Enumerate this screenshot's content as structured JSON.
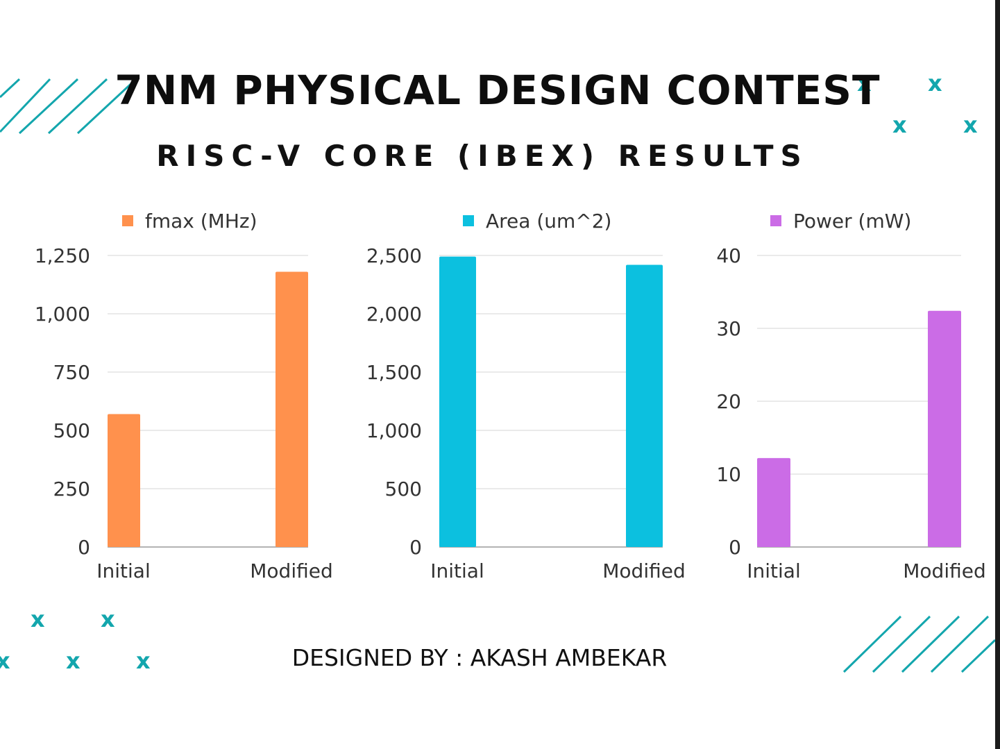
{
  "header": {
    "title": "7NM PHYSICAL DESIGN CONTEST",
    "subtitle": "RISC-V CORE (IBEX) RESULTS"
  },
  "footer": {
    "credit": "DESIGNED BY : AKASH AMBEKAR"
  },
  "decorations": {
    "accent_color": "#13a6ad",
    "x_mark": "x",
    "stripe_icon": "diagonal-stripes-icon"
  },
  "chart_data": [
    {
      "type": "bar",
      "categories": [
        "Initial",
        "Modified"
      ],
      "series": [
        {
          "name": "fmax (MHz)",
          "values": [
            570,
            1180
          ],
          "color": "#ff914d"
        }
      ],
      "ylim": [
        0,
        1250
      ],
      "yticks": [
        0,
        250,
        500,
        750,
        1000,
        1250
      ],
      "ytick_labels": [
        "0",
        "250",
        "500",
        "750",
        "1,000",
        "1,250"
      ],
      "legend": "top",
      "grid": true
    },
    {
      "type": "bar",
      "categories": [
        "Initial",
        "Modified"
      ],
      "series": [
        {
          "name": "Area (um^2)",
          "values": [
            2490,
            2420
          ],
          "color": "#0cc0df"
        }
      ],
      "ylim": [
        0,
        2500
      ],
      "yticks": [
        0,
        500,
        1000,
        1500,
        2000,
        2500
      ],
      "ytick_labels": [
        "0",
        "500",
        "1,000",
        "1,500",
        "2,000",
        "2,500"
      ],
      "legend": "top",
      "grid": true
    },
    {
      "type": "bar",
      "categories": [
        "Initial",
        "Modified"
      ],
      "series": [
        {
          "name": "Power (mW)",
          "values": [
            12.2,
            32.4
          ],
          "color": "#cb6ce6"
        }
      ],
      "ylim": [
        0,
        40
      ],
      "yticks": [
        0,
        10,
        20,
        30,
        40
      ],
      "ytick_labels": [
        "0",
        "10",
        "20",
        "30",
        "40"
      ],
      "legend": "top",
      "grid": true
    }
  ]
}
